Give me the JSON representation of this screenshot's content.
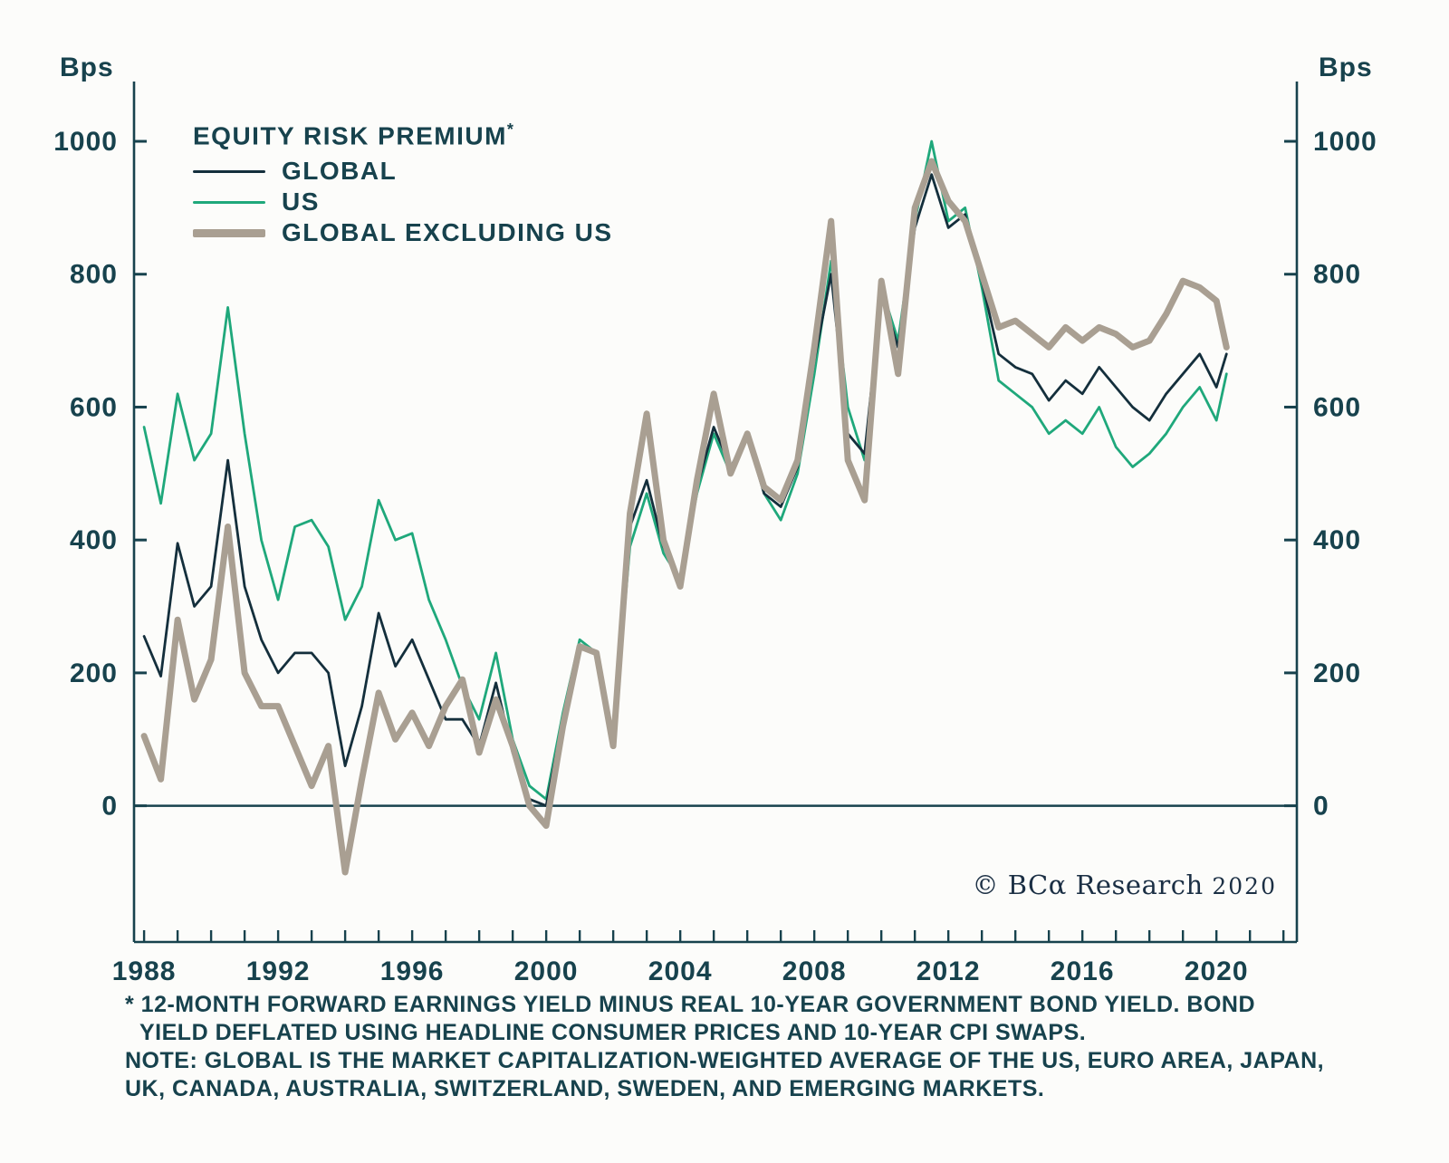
{
  "page": {
    "background": "#fcfcfa",
    "accent_color": "#17424d"
  },
  "chart": {
    "y_axis_label_left": "Bps",
    "y_axis_label_right": "Bps",
    "legend": {
      "title": "EQUITY RISK PREMIUM",
      "title_superscript": "*",
      "entries": [
        {
          "label": "GLOBAL",
          "color": "#142f3c",
          "thickness": 3
        },
        {
          "label": "US",
          "color": "#1fa87b",
          "thickness": 3
        },
        {
          "label": "GLOBAL EXCLUDING US",
          "color": "#a99f92",
          "thickness": 9
        }
      ]
    },
    "copyright_text": "© BCα Research",
    "copyright_year": "2020"
  },
  "footnotes": {
    "lines": [
      "* 12-MONTH FORWARD EARNINGS YIELD MINUS REAL 10-YEAR GOVERNMENT BOND YIELD. BOND",
      "YIELD DEFLATED USING HEADLINE CONSUMER PRICES AND 10-YEAR CPI SWAPS.",
      "NOTE: GLOBAL IS THE MARKET CAPITALIZATION-WEIGHTED AVERAGE OF THE US, EURO AREA, JAPAN,",
      "UK, CANADA, AUSTRALIA, SWITZERLAND, SWEDEN, AND EMERGING MARKETS."
    ]
  },
  "chart_data": {
    "type": "line",
    "title": "Equity Risk Premium",
    "units": "Bps",
    "ylabel": "Bps",
    "xlabel": "",
    "grid": false,
    "legend_position": "top-left",
    "axis_color": "#17424d",
    "x_range": [
      1987.7,
      2022.4
    ],
    "y_range": [
      -205,
      1090
    ],
    "zero_line": 0,
    "y_ticks": [
      0,
      200,
      400,
      600,
      800,
      1000
    ],
    "x_tick_labels": [
      1988,
      1992,
      1996,
      2000,
      2004,
      2008,
      2012,
      2016,
      2020
    ],
    "x_minor_tick_start": 1988,
    "x_minor_tick_end": 2022,
    "x": [
      1988,
      1988.5,
      1989,
      1989.5,
      1990,
      1990.5,
      1991,
      1991.5,
      1992,
      1992.5,
      1993,
      1993.5,
      1994,
      1994.5,
      1995,
      1995.5,
      1996,
      1996.5,
      1997,
      1997.5,
      1998,
      1998.5,
      1999,
      1999.5,
      2000,
      2000.5,
      2001,
      2001.5,
      2002,
      2002.5,
      2003,
      2003.5,
      2004,
      2004.5,
      2005,
      2005.5,
      2006,
      2006.5,
      2007,
      2007.5,
      2008,
      2008.5,
      2009,
      2009.5,
      2010,
      2010.5,
      2011,
      2011.5,
      2012,
      2012.5,
      2013,
      2013.5,
      2014,
      2014.5,
      2015,
      2015.5,
      2016,
      2016.5,
      2017,
      2017.5,
      2018,
      2018.5,
      2019,
      2019.5,
      2020,
      2020.3
    ],
    "series": [
      {
        "name": "GLOBAL",
        "color": "#142f3c",
        "width": 2.8,
        "z": 2,
        "values": [
          255,
          195,
          395,
          300,
          330,
          520,
          330,
          250,
          200,
          230,
          230,
          200,
          60,
          150,
          290,
          210,
          250,
          190,
          130,
          130,
          90,
          185,
          80,
          10,
          0,
          130,
          240,
          230,
          95,
          420,
          490,
          390,
          340,
          480,
          570,
          510,
          555,
          470,
          450,
          510,
          670,
          800,
          560,
          530,
          770,
          690,
          870,
          950,
          870,
          890,
          790,
          680,
          660,
          650,
          610,
          640,
          620,
          660,
          630,
          600,
          580,
          620,
          650,
          680,
          630,
          680
        ]
      },
      {
        "name": "US",
        "color": "#1fa87b",
        "width": 2.8,
        "z": 1,
        "values": [
          570,
          455,
          620,
          520,
          560,
          750,
          560,
          400,
          310,
          420,
          430,
          390,
          280,
          330,
          460,
          400,
          410,
          310,
          250,
          180,
          130,
          230,
          100,
          30,
          10,
          140,
          250,
          230,
          100,
          390,
          470,
          380,
          340,
          470,
          560,
          500,
          560,
          470,
          430,
          500,
          650,
          820,
          600,
          520,
          780,
          700,
          880,
          1000,
          880,
          900,
          780,
          640,
          620,
          600,
          560,
          580,
          560,
          600,
          540,
          510,
          530,
          560,
          600,
          630,
          580,
          650
        ]
      },
      {
        "name": "GLOBAL EXCLUDING US",
        "color": "#a99f92",
        "width": 7,
        "z": 3,
        "values": [
          105,
          40,
          280,
          160,
          220,
          420,
          200,
          150,
          150,
          90,
          30,
          90,
          -100,
          40,
          170,
          100,
          140,
          90,
          150,
          190,
          80,
          160,
          90,
          0,
          -30,
          120,
          240,
          230,
          90,
          440,
          590,
          400,
          330,
          490,
          620,
          500,
          560,
          480,
          460,
          520,
          690,
          880,
          520,
          460,
          790,
          650,
          900,
          970,
          910,
          880,
          800,
          720,
          730,
          710,
          690,
          720,
          700,
          720,
          710,
          690,
          700,
          740,
          790,
          780,
          760,
          690
        ]
      }
    ]
  }
}
